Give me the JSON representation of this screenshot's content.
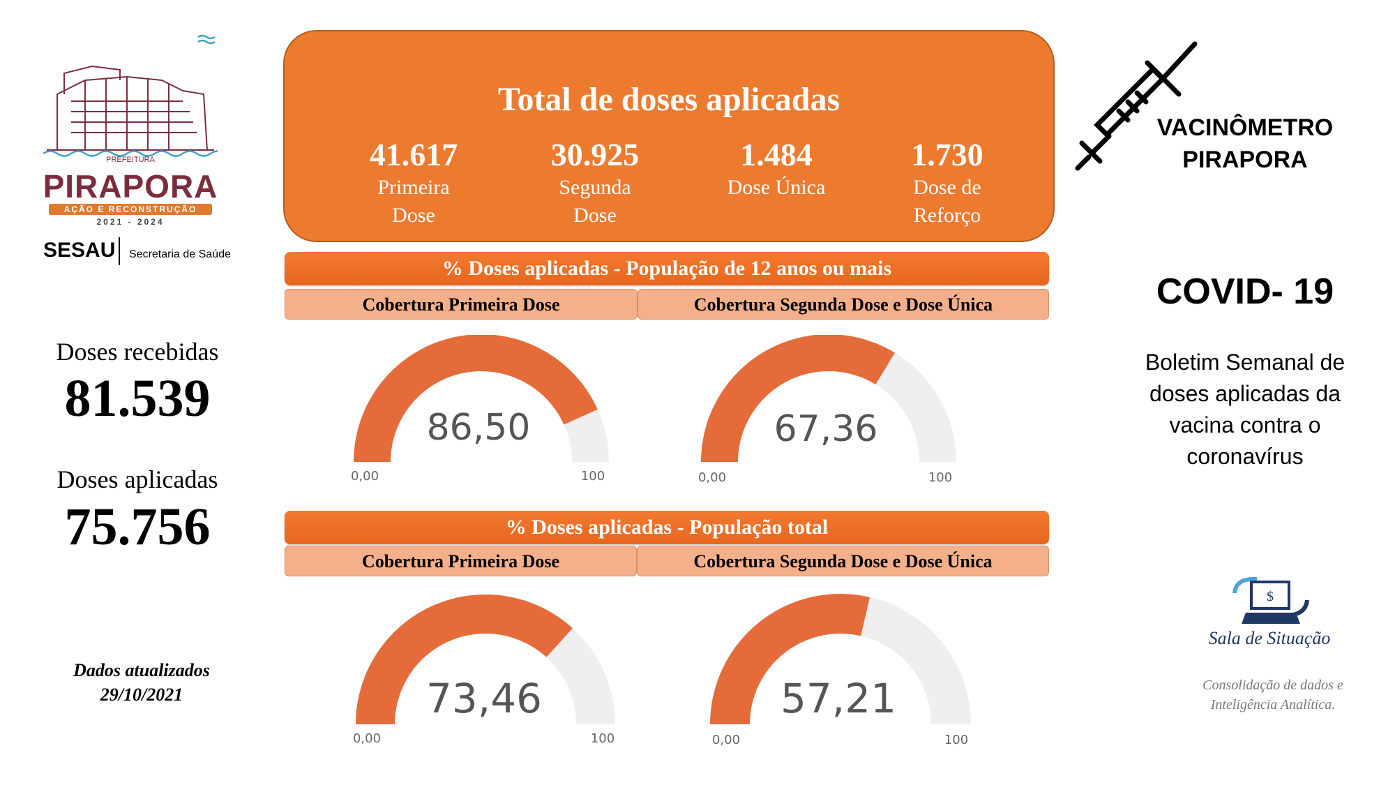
{
  "logo": {
    "prefeitura": "PREFEITURA",
    "city": "PIRAPORA",
    "motto": "AÇÃO E RECONSTRUÇÃO",
    "years": "2021 - 2024"
  },
  "sesau": {
    "acronym": "SESAU",
    "name": "Secretaria de Saúde"
  },
  "left_stats": {
    "received_label": "Doses recebidas",
    "received_value": "81.539",
    "applied_label": "Doses aplicadas",
    "applied_value": "75.756",
    "updated_label": "Dados atualizados",
    "updated_date": "29/10/2021"
  },
  "total": {
    "title": "Total de doses aplicadas",
    "items": [
      {
        "value": "41.617",
        "label_line1": "Primeira",
        "label_line2": "Dose"
      },
      {
        "value": "30.925",
        "label_line1": "Segunda",
        "label_line2": "Dose"
      },
      {
        "value": "1.484",
        "label_line1": "Dose Única",
        "label_line2": ""
      },
      {
        "value": "1.730",
        "label_line1": "Dose de",
        "label_line2": "Reforço"
      }
    ]
  },
  "section_12plus": {
    "title": "% Doses aplicadas  - População de 12 anos ou mais",
    "tab_first": "Cobertura Primeira Dose",
    "tab_second": "Cobertura Segunda Dose e Dose Única"
  },
  "section_total": {
    "title": "% Doses aplicadas - População total",
    "tab_first": "Cobertura Primeira Dose",
    "tab_second": "Cobertura Segunda Dose e Dose Única"
  },
  "gauges": [
    {
      "value": 86.5,
      "display": "86,50",
      "min_label": "0,00",
      "max_label": "100"
    },
    {
      "value": 67.36,
      "display": "67,36",
      "min_label": "0,00",
      "max_label": "100"
    },
    {
      "value": 73.46,
      "display": "73,46",
      "min_label": "0,00",
      "max_label": "100"
    },
    {
      "value": 57.21,
      "display": "57,21",
      "min_label": "0,00",
      "max_label": "100"
    }
  ],
  "colors": {
    "accent": "#ec7b30",
    "gauge_fill": "#e56b3a",
    "gauge_track": "#efefef",
    "tab": "#f4b08a"
  },
  "right": {
    "title_line1": "VACINÔMETRO",
    "title_line2": "PIRAPORA",
    "covid": "COVID- 19",
    "boletim_line1": "Boletim Semanal de",
    "boletim_line2": "doses aplicadas da",
    "boletim_line3": "vacina contra o",
    "boletim_line4": "coronavírus",
    "sala_title": "Sala de Situação",
    "sala_desc_line1": "Consolidação de dados e",
    "sala_desc_line2": "Inteligência Analítica."
  }
}
